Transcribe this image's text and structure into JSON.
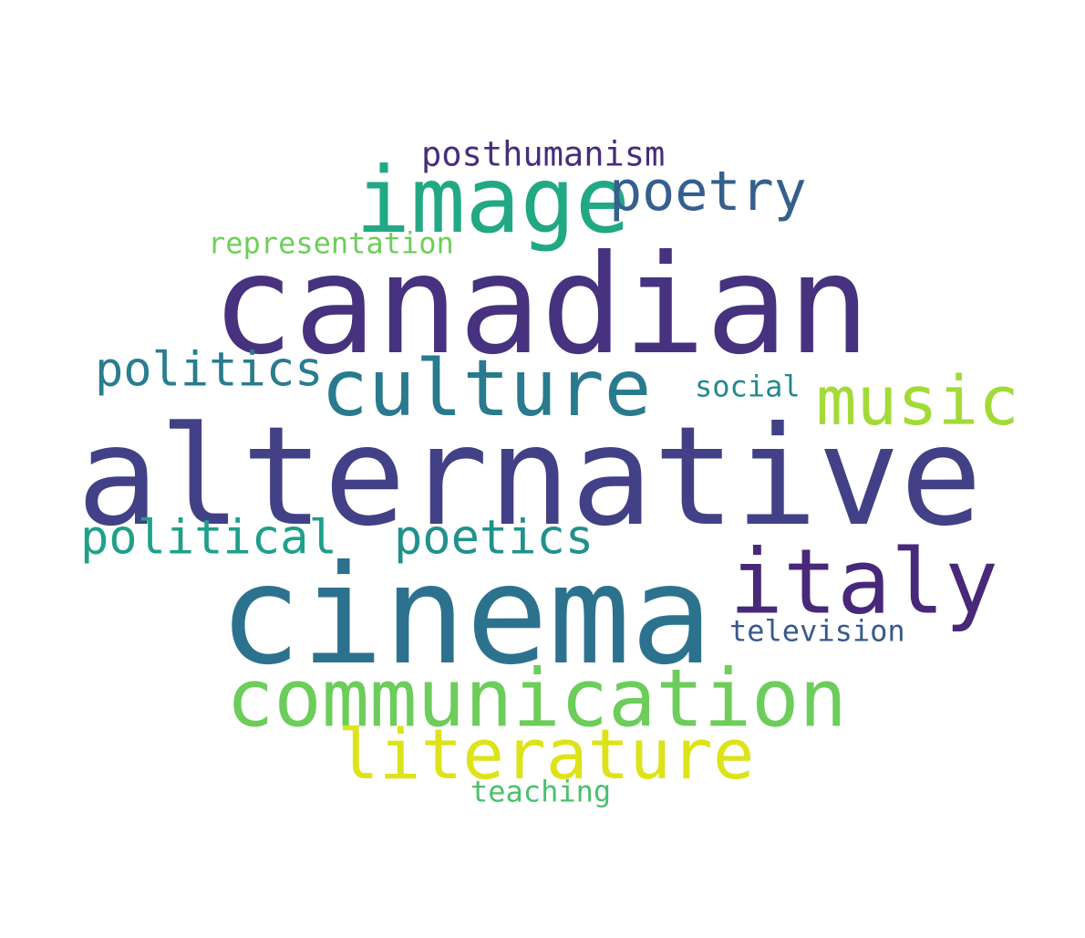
{
  "words": {
    "canadian": {
      "text": "canadian",
      "color": "#46327e"
    },
    "alternative": {
      "text": "alternative",
      "color": "#424086"
    },
    "cinema": {
      "text": "cinema",
      "color": "#2c728e"
    },
    "communication": {
      "text": "communication",
      "color": "#6ccd5a"
    },
    "literature": {
      "text": "literature",
      "color": "#dde318"
    },
    "image": {
      "text": "image",
      "color": "#22a884"
    },
    "italy": {
      "text": "italy",
      "color": "#482878"
    },
    "culture": {
      "text": "culture",
      "color": "#297a8e"
    },
    "music": {
      "text": "music",
      "color": "#a2da37"
    },
    "poetry": {
      "text": "poetry",
      "color": "#355f8d"
    },
    "politics": {
      "text": "politics",
      "color": "#287d8e"
    },
    "political": {
      "text": "political",
      "color": "#1fa088"
    },
    "poetics": {
      "text": "poetics",
      "color": "#21918c"
    },
    "posthumanism": {
      "text": "posthumanism",
      "color": "#472d7b"
    },
    "representation": {
      "text": "representation",
      "color": "#6ece58"
    },
    "social": {
      "text": "social",
      "color": "#23898e"
    },
    "television": {
      "text": "television",
      "color": "#38598c"
    },
    "teaching": {
      "text": "teaching",
      "color": "#4ac16d"
    }
  }
}
